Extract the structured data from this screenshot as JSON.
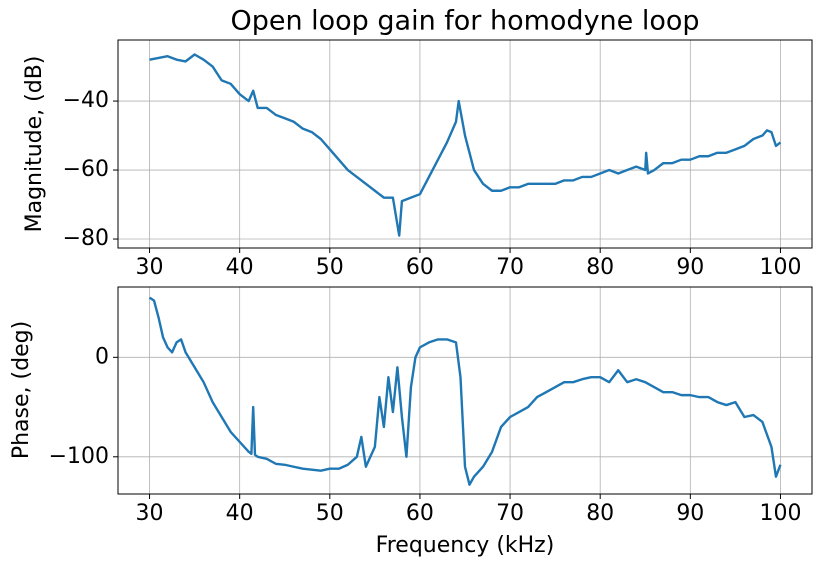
{
  "chart_data": [
    {
      "type": "line",
      "title": "Open loop gain for homodyne loop",
      "ylabel": "Magnitude, (dB)",
      "color": "#1f77b4",
      "grid": true,
      "x": [
        30,
        31,
        32,
        33,
        34,
        35,
        36,
        37,
        38,
        39,
        40,
        41,
        41.5,
        42,
        43,
        44,
        45,
        46,
        47,
        48,
        49,
        50,
        51,
        52,
        53,
        54,
        55,
        56,
        57,
        57.7,
        58,
        59,
        60,
        61,
        62,
        63,
        64,
        64.3,
        65,
        66,
        67,
        68,
        69,
        70,
        71,
        72,
        73,
        74,
        75,
        76,
        77,
        78,
        79,
        80,
        81,
        82,
        83,
        84,
        85,
        85.1,
        85.3,
        86,
        87,
        88,
        89,
        90,
        91,
        92,
        93,
        94,
        95,
        96,
        97,
        98,
        98.5,
        99,
        99.5,
        100
      ],
      "values": [
        -28,
        -27.5,
        -27,
        -28,
        -28.5,
        -26.5,
        -28,
        -30,
        -34,
        -35,
        -38,
        -40,
        -37,
        -42,
        -42,
        -44,
        -45,
        -46,
        -48,
        -49,
        -51,
        -54,
        -57,
        -60,
        -62,
        -64,
        -66,
        -68,
        -68,
        -79,
        -69,
        -68,
        -67,
        -62,
        -57,
        -52,
        -46,
        -40,
        -50,
        -60,
        -64,
        -66,
        -66,
        -65,
        -65,
        -64,
        -64,
        -64,
        -64,
        -63,
        -63,
        -62,
        -62,
        -61,
        -60,
        -61,
        -60,
        -59,
        -60,
        -55,
        -61,
        -60,
        -58,
        -58,
        -57,
        -57,
        -56,
        -56,
        -55,
        -55,
        -54,
        -53,
        -51,
        -50,
        -48.5,
        -49,
        -53,
        -52
      ],
      "xlim": [
        26.5,
        103.5
      ],
      "ylim": [
        -82.6,
        -22.3
      ],
      "xticks": [
        30,
        40,
        50,
        60,
        70,
        80,
        90,
        100
      ],
      "yticks": [
        {
          "value": -40,
          "label": "−40"
        },
        {
          "value": -60,
          "label": "−60"
        },
        {
          "value": -80,
          "label": "−80"
        }
      ]
    },
    {
      "type": "line",
      "ylabel": "Phase, (deg)",
      "xlabel": "Frequency (kHz)",
      "color": "#1f77b4",
      "grid": true,
      "x": [
        30,
        30.5,
        31,
        31.5,
        32,
        32.5,
        33,
        33.5,
        34,
        35,
        36,
        37,
        38,
        39,
        40,
        41,
        41.3,
        41.5,
        41.7,
        42,
        43,
        44,
        45,
        46,
        47,
        48,
        49,
        50,
        51,
        52,
        53,
        53.5,
        54,
        55,
        55.5,
        56,
        56.5,
        57,
        57.5,
        58,
        58.5,
        59,
        59.5,
        60,
        61,
        62,
        63,
        64,
        64.5,
        65,
        65.5,
        66,
        67,
        68,
        69,
        70,
        71,
        72,
        73,
        74,
        75,
        76,
        77,
        78,
        79,
        80,
        81,
        82,
        83,
        84,
        85,
        86,
        87,
        88,
        89,
        90,
        91,
        92,
        93,
        94,
        95,
        96,
        97,
        98,
        99,
        99.5,
        100
      ],
      "values": [
        60,
        57,
        40,
        20,
        10,
        5,
        15,
        18,
        5,
        -10,
        -25,
        -45,
        -60,
        -75,
        -85,
        -95,
        -97,
        -50,
        -98,
        -100,
        -102,
        -107,
        -108,
        -110,
        -112,
        -113,
        -114,
        -112,
        -112,
        -108,
        -100,
        -80,
        -110,
        -90,
        -40,
        -70,
        -20,
        -55,
        -10,
        -60,
        -100,
        -30,
        0,
        10,
        15,
        18,
        18,
        15,
        -20,
        -110,
        -128,
        -120,
        -110,
        -95,
        -70,
        -60,
        -55,
        -50,
        -40,
        -35,
        -30,
        -25,
        -25,
        -22,
        -20,
        -20,
        -25,
        -13,
        -25,
        -22,
        -25,
        -30,
        -35,
        -35,
        -38,
        -38,
        -40,
        -40,
        -45,
        -48,
        -45,
        -60,
        -58,
        -65,
        -90,
        -120,
        -108
      ],
      "xlim": [
        26.5,
        103.5
      ],
      "ylim": [
        -137.4,
        70.7
      ],
      "xticks": [
        30,
        40,
        50,
        60,
        70,
        80,
        90,
        100
      ],
      "yticks": [
        0,
        {
          "value": -100,
          "label": "−100"
        }
      ]
    }
  ]
}
